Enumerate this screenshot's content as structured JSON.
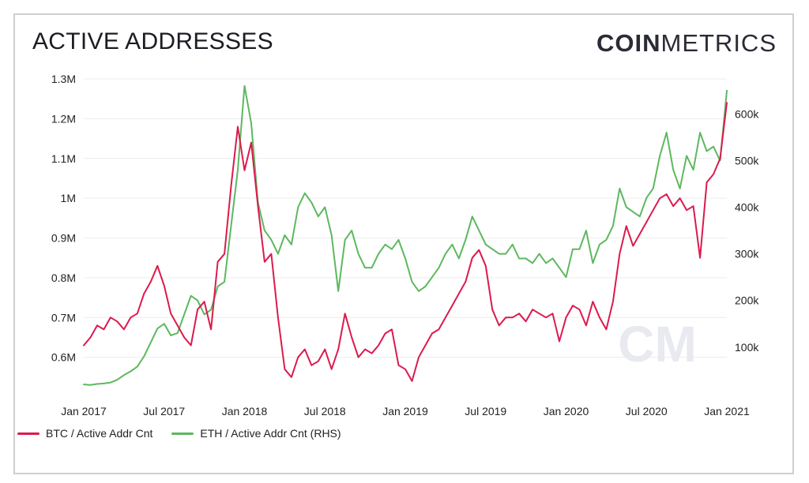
{
  "header": {
    "title": "ACTIVE ADDRESSES"
  },
  "logo": {
    "bold": "COIN",
    "light": "METRICS",
    "watermark": "CM"
  },
  "colors": {
    "btc": "#dc1a4e",
    "eth": "#5db85e",
    "grid": "#ececec"
  },
  "chart_data": {
    "type": "line",
    "x": [
      "2017-01",
      "2017-01",
      "2017-02",
      "2017-02",
      "2017-03",
      "2017-03",
      "2017-04",
      "2017-04",
      "2017-05",
      "2017-05",
      "2017-06",
      "2017-06",
      "2017-07",
      "2017-07",
      "2017-08",
      "2017-08",
      "2017-09",
      "2017-09",
      "2017-10",
      "2017-10",
      "2017-11",
      "2017-11",
      "2017-12",
      "2017-12",
      "2018-01",
      "2018-01",
      "2018-02",
      "2018-02",
      "2018-03",
      "2018-03",
      "2018-04",
      "2018-04",
      "2018-05",
      "2018-05",
      "2018-06",
      "2018-06",
      "2018-07",
      "2018-07",
      "2018-08",
      "2018-08",
      "2018-09",
      "2018-09",
      "2018-10",
      "2018-10",
      "2018-11",
      "2018-11",
      "2018-12",
      "2018-12",
      "2019-01",
      "2019-01",
      "2019-02",
      "2019-02",
      "2019-03",
      "2019-03",
      "2019-04",
      "2019-04",
      "2019-05",
      "2019-05",
      "2019-06",
      "2019-06",
      "2019-07",
      "2019-07",
      "2019-08",
      "2019-08",
      "2019-09",
      "2019-09",
      "2019-10",
      "2019-10",
      "2019-11",
      "2019-11",
      "2019-12",
      "2019-12",
      "2020-01",
      "2020-01",
      "2020-02",
      "2020-02",
      "2020-03",
      "2020-03",
      "2020-04",
      "2020-04",
      "2020-05",
      "2020-05",
      "2020-06",
      "2020-06",
      "2020-07",
      "2020-07",
      "2020-08",
      "2020-08",
      "2020-09",
      "2020-09",
      "2020-10",
      "2020-10",
      "2020-11",
      "2020-11",
      "2020-12",
      "2020-12",
      "2021-01"
    ],
    "x_ticks": [
      "Jan 2017",
      "Jul 2017",
      "Jan 2018",
      "Jul 2018",
      "Jan 2019",
      "Jul 2019",
      "Jan 2020",
      "Jul 2020",
      "Jan 2021"
    ],
    "y_left_ticks": [
      "0.6M",
      "0.7M",
      "0.8M",
      "0.9M",
      "1M",
      "1.1M",
      "1.2M",
      "1.3M"
    ],
    "y_right_ticks": [
      "100k",
      "200k",
      "300k",
      "400k",
      "500k",
      "600k"
    ],
    "ylim_left": [
      0.52,
      1.3
    ],
    "ylim_right": [
      10000,
      675000
    ],
    "series": [
      {
        "name": "BTC / Active Addr Cnt",
        "axis": "left",
        "values": [
          0.63,
          0.65,
          0.68,
          0.67,
          0.7,
          0.69,
          0.67,
          0.7,
          0.71,
          0.76,
          0.79,
          0.83,
          0.78,
          0.71,
          0.68,
          0.65,
          0.63,
          0.72,
          0.74,
          0.67,
          0.84,
          0.86,
          1.03,
          1.18,
          1.07,
          1.14,
          0.98,
          0.84,
          0.86,
          0.7,
          0.57,
          0.55,
          0.6,
          0.62,
          0.58,
          0.59,
          0.62,
          0.57,
          0.62,
          0.71,
          0.65,
          0.6,
          0.62,
          0.61,
          0.63,
          0.66,
          0.67,
          0.58,
          0.57,
          0.54,
          0.6,
          0.63,
          0.66,
          0.67,
          0.7,
          0.73,
          0.76,
          0.79,
          0.85,
          0.87,
          0.83,
          0.72,
          0.68,
          0.7,
          0.7,
          0.71,
          0.69,
          0.72,
          0.71,
          0.7,
          0.71,
          0.64,
          0.7,
          0.73,
          0.72,
          0.68,
          0.74,
          0.7,
          0.67,
          0.74,
          0.86,
          0.93,
          0.88,
          0.91,
          0.94,
          0.97,
          1.0,
          1.01,
          0.98,
          1.0,
          0.97,
          0.98,
          0.85,
          1.04,
          1.06,
          1.1,
          1.24
        ]
      },
      {
        "name": "ETH / Active Addr Cnt (RHS)",
        "axis": "right",
        "values": [
          20000,
          19000,
          21000,
          22000,
          24000,
          30000,
          40000,
          48000,
          58000,
          80000,
          110000,
          140000,
          150000,
          125000,
          130000,
          170000,
          210000,
          200000,
          170000,
          180000,
          230000,
          240000,
          360000,
          480000,
          660000,
          580000,
          410000,
          350000,
          330000,
          300000,
          340000,
          320000,
          400000,
          430000,
          410000,
          380000,
          400000,
          340000,
          220000,
          330000,
          350000,
          300000,
          270000,
          270000,
          300000,
          320000,
          310000,
          330000,
          290000,
          240000,
          220000,
          230000,
          250000,
          270000,
          300000,
          320000,
          290000,
          330000,
          380000,
          350000,
          320000,
          310000,
          300000,
          300000,
          320000,
          290000,
          290000,
          280000,
          300000,
          280000,
          290000,
          270000,
          250000,
          310000,
          310000,
          350000,
          280000,
          320000,
          330000,
          360000,
          440000,
          400000,
          390000,
          380000,
          420000,
          440000,
          510000,
          560000,
          480000,
          440000,
          510000,
          480000,
          560000,
          520000,
          530000,
          500000,
          650000
        ]
      }
    ],
    "legend_position": "bottom-left",
    "grid": "horizontal"
  }
}
